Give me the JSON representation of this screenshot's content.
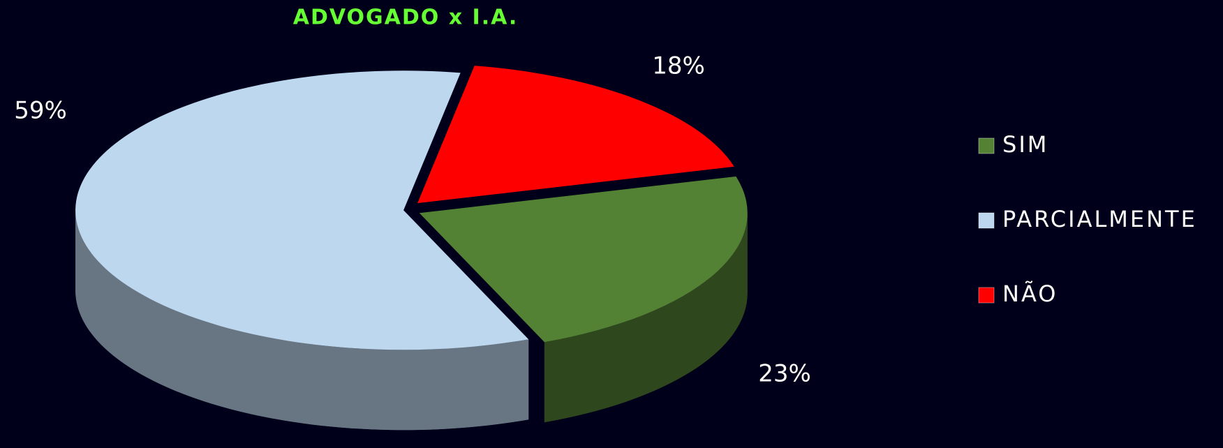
{
  "chart_data": {
    "type": "pie",
    "title": "ADVOGADO x I.A.",
    "categories": [
      "SIM",
      "PARCIALMENTE",
      "NÃO"
    ],
    "values": [
      23,
      59,
      18
    ],
    "value_labels": [
      "23%",
      "59%",
      "18%"
    ],
    "colors": [
      "#548235",
      "#bdd7ee",
      "#ff0000"
    ],
    "legend": "right"
  }
}
